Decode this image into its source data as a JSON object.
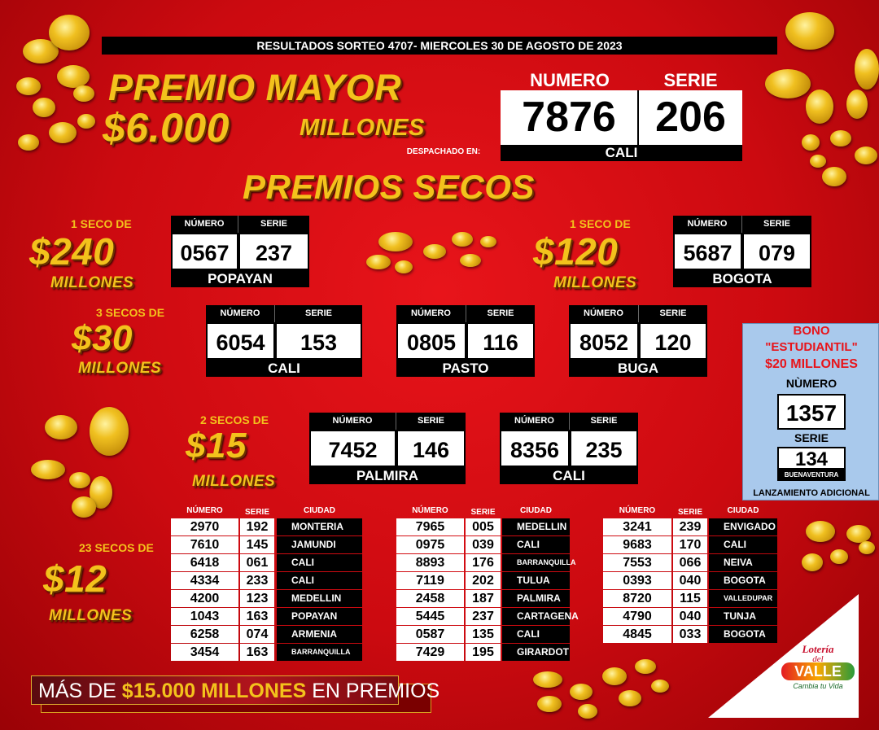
{
  "header": "RESULTADOS SORTEO 4707- MIERCOLES 30 DE AGOSTO DE 2023",
  "premio_mayor": {
    "title": "PREMIO MAYOR",
    "amount": "$6.000",
    "unit": "MILLONES",
    "numero_label": "NUMERO",
    "serie_label": "SERIE",
    "numero": "7876",
    "serie": "206",
    "despachado_label": "DESPACHADO EN:",
    "ciudad": "CALI"
  },
  "secos_title": "PREMIOS SECOS",
  "box_headers": [
    "NÚMERO",
    "SERIE"
  ],
  "groups": [
    {
      "count_label": "1 SECO DE",
      "amount": "$240",
      "unit": "MILLONES",
      "results": [
        {
          "numero": "0567",
          "serie": "237",
          "ciudad": "POPAYAN"
        }
      ]
    },
    {
      "count_label": "1 SECO DE",
      "amount": "$120",
      "unit": "MILLONES",
      "results": [
        {
          "numero": "5687",
          "serie": "079",
          "ciudad": "BOGOTA"
        }
      ]
    },
    {
      "count_label": "3 SECOS DE",
      "amount": "$30",
      "unit": "MILLONES",
      "results": [
        {
          "numero": "6054",
          "serie": "153",
          "ciudad": "CALI"
        },
        {
          "numero": "0805",
          "serie": "116",
          "ciudad": "PASTO"
        },
        {
          "numero": "8052",
          "serie": "120",
          "ciudad": "BUGA"
        }
      ]
    },
    {
      "count_label": "2 SECOS DE",
      "amount": "$15",
      "unit": "MILLONES",
      "results": [
        {
          "numero": "7452",
          "serie": "146",
          "ciudad": "PALMIRA"
        },
        {
          "numero": "8356",
          "serie": "235",
          "ciudad": "CALI"
        }
      ]
    }
  ],
  "table_group": {
    "count_label": "23 SECOS DE",
    "amount": "$12",
    "unit": "MILLONES",
    "headers": [
      "NÚMERO",
      "SERIE",
      "CIUDAD"
    ],
    "columns": [
      [
        [
          "2970",
          "192",
          "MONTERIA"
        ],
        [
          "7610",
          "145",
          "JAMUNDI"
        ],
        [
          "6418",
          "061",
          "CALI"
        ],
        [
          "4334",
          "233",
          "CALI"
        ],
        [
          "4200",
          "123",
          "MEDELLIN"
        ],
        [
          "1043",
          "163",
          "POPAYAN"
        ],
        [
          "6258",
          "074",
          "ARMENIA"
        ],
        [
          "3454",
          "163",
          "BARRANQUILLA"
        ]
      ],
      [
        [
          "7965",
          "005",
          "MEDELLIN"
        ],
        [
          "0975",
          "039",
          "CALI"
        ],
        [
          "8893",
          "176",
          "BARRANQUILLA"
        ],
        [
          "7119",
          "202",
          "TULUA"
        ],
        [
          "2458",
          "187",
          "PALMIRA"
        ],
        [
          "5445",
          "237",
          "CARTAGENA"
        ],
        [
          "0587",
          "135",
          "CALI"
        ],
        [
          "7429",
          "195",
          "GIRARDOT"
        ]
      ],
      [
        [
          "3241",
          "239",
          "ENVIGADO"
        ],
        [
          "9683",
          "170",
          "CALI"
        ],
        [
          "7553",
          "066",
          "NEIVA"
        ],
        [
          "0393",
          "040",
          "BOGOTA"
        ],
        [
          "8720",
          "115",
          "VALLEDUPAR"
        ],
        [
          "4790",
          "040",
          "TUNJA"
        ],
        [
          "4845",
          "033",
          "BOGOTA"
        ]
      ]
    ]
  },
  "bono": {
    "line1": "BONO",
    "line2": "\"ESTUDIANTIL\"",
    "line3": "$20 MILLONES",
    "numero_label": "NÙMERO",
    "numero": "1357",
    "serie_label": "SERIE",
    "serie": "134",
    "ciudad": "BUENAVENTURA",
    "note": "LANZAMIENTO ADICIONAL"
  },
  "footer": [
    "MÁS DE ",
    "$15.000 MILLONES",
    " EN PREMIOS"
  ],
  "logo": {
    "line1": "Lotería",
    "line2": "del",
    "line3": "VALLE",
    "tagline": "Cambia tu Vida"
  }
}
